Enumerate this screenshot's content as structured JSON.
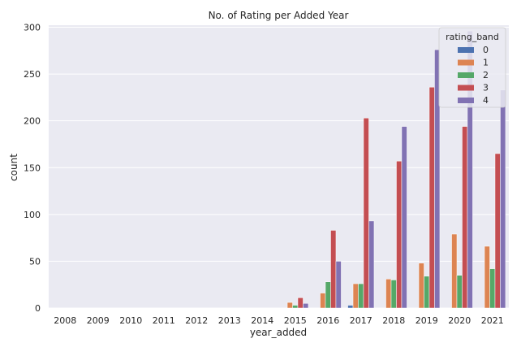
{
  "chart_data": {
    "type": "bar",
    "title": "No. of Rating per Added Year",
    "xlabel": "year_added",
    "ylabel": "count",
    "ylim": [
      0,
      305
    ],
    "yticks": [
      0,
      50,
      100,
      150,
      200,
      250,
      300
    ],
    "grid": true,
    "legend_position": "top-right",
    "legend_title": "rating_band",
    "categories": [
      "2008",
      "2009",
      "2010",
      "2011",
      "2012",
      "2013",
      "2014",
      "2015",
      "2016",
      "2017",
      "2018",
      "2019",
      "2020",
      "2021"
    ],
    "series": [
      {
        "name": "0",
        "color": "#4c72b0",
        "values": [
          0,
          0,
          0,
          0,
          0,
          0,
          0,
          0,
          0,
          3,
          0,
          0,
          0,
          0
        ]
      },
      {
        "name": "1",
        "color": "#dd8452",
        "values": [
          0,
          0,
          0,
          0,
          0,
          0,
          0,
          6,
          16,
          26,
          31,
          48,
          79,
          66
        ]
      },
      {
        "name": "2",
        "color": "#55a868",
        "values": [
          0,
          0,
          0,
          0,
          0,
          0,
          0,
          3,
          28,
          26,
          30,
          34,
          35,
          42
        ]
      },
      {
        "name": "3",
        "color": "#c44e52",
        "values": [
          0,
          0,
          0,
          0,
          0,
          0,
          0,
          11,
          83,
          203,
          157,
          236,
          194,
          165
        ]
      },
      {
        "name": "4",
        "color": "#8172b3",
        "values": [
          0,
          0,
          0,
          0,
          0,
          0,
          0,
          5,
          50,
          93,
          194,
          276,
          296,
          233
        ]
      }
    ]
  }
}
